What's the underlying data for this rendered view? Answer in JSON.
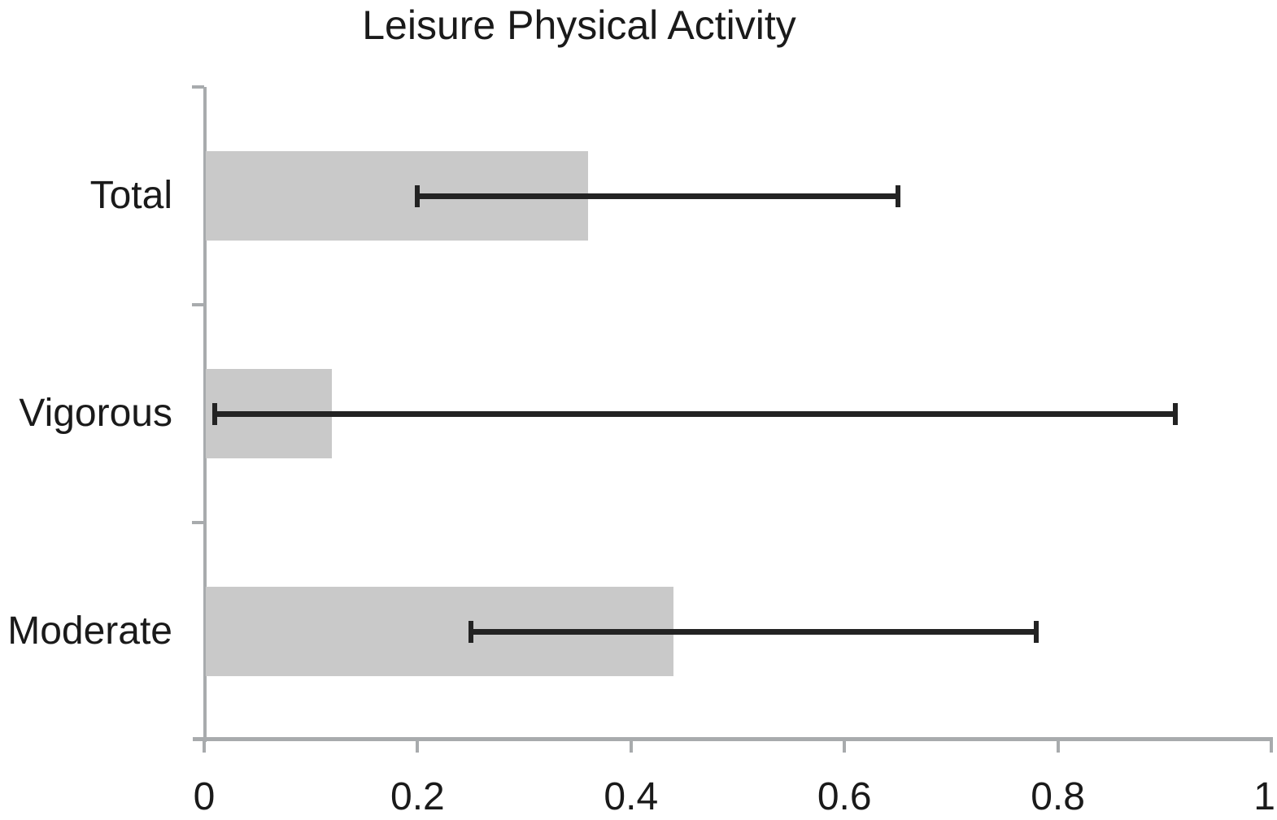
{
  "title": "Leisure Physical Activity",
  "chart_data": {
    "type": "bar",
    "orientation": "horizontal",
    "title": "Leisure Physical Activity",
    "categories": [
      "Total",
      "Vigorous",
      "Moderate"
    ],
    "values": [
      0.36,
      0.12,
      0.44
    ],
    "error_bars": [
      {
        "low": 0.2,
        "high": 0.65
      },
      {
        "low": 0.01,
        "high": 0.91
      },
      {
        "low": 0.25,
        "high": 0.78
      }
    ],
    "xlabel": "",
    "ylabel": "",
    "xlim": [
      0,
      1
    ],
    "x_ticks": [
      0,
      0.2,
      0.4,
      0.6,
      0.8,
      1
    ],
    "x_tick_labels": [
      "0",
      "0.2",
      "0.4",
      "0.6",
      "0.8",
      "1"
    ],
    "grid": false,
    "legend": null,
    "colors": {
      "bar_fill": "#c9c9c9",
      "error_bar": "#232323",
      "axis": "#a8abad",
      "text": "#1a1a1a",
      "background": "#ffffff"
    }
  }
}
